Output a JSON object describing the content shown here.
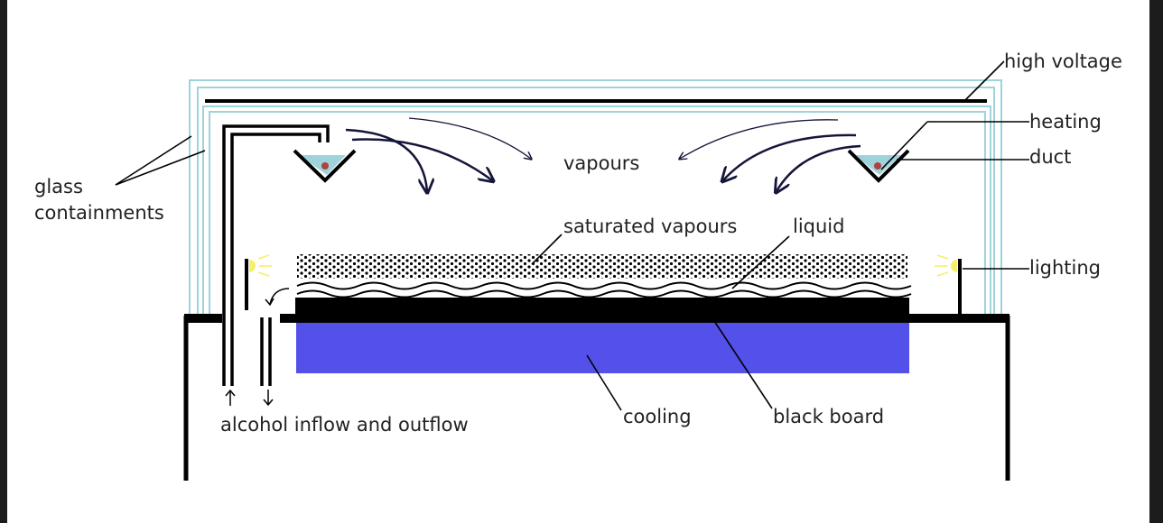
{
  "labels": {
    "high_voltage": "high voltage",
    "heating": "heating",
    "duct": "duct",
    "glass_line1": "glass",
    "glass_line2": "containments",
    "vapours": "vapours",
    "saturated_vapours": "saturated vapours",
    "liquid": "liquid",
    "lighting": "lighting",
    "alcohol": "alcohol inflow and outflow",
    "cooling": "cooling",
    "black_board": "black board"
  },
  "colors": {
    "glass": "#9fd3dc",
    "cooling": "#5450ea",
    "structure": "#000000",
    "heating_dot": "#b0413e",
    "light": "#f5ef6a",
    "vapour_arrows": "#15153a"
  }
}
